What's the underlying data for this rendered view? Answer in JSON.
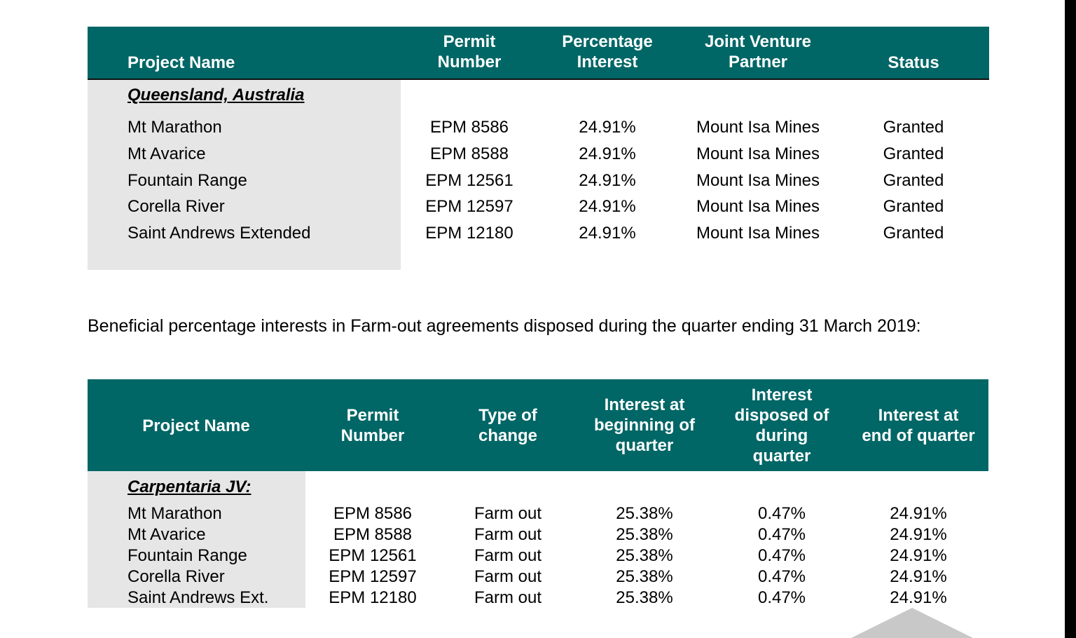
{
  "table1": {
    "headers": [
      "Project Name",
      "Permit\nNumber",
      "Percentage\nInterest",
      "Joint Venture\nPartner",
      "Status"
    ],
    "section": "Queensland, Australia",
    "rows": [
      [
        "Mt Marathon",
        "EPM 8586",
        "24.91%",
        "Mount Isa Mines",
        "Granted"
      ],
      [
        "Mt Avarice",
        "EPM 8588",
        "24.91%",
        "Mount Isa Mines",
        "Granted"
      ],
      [
        "Fountain Range",
        "EPM 12561",
        "24.91%",
        "Mount Isa Mines",
        "Granted"
      ],
      [
        "Corella River",
        "EPM 12597",
        "24.91%",
        "Mount Isa Mines",
        "Granted"
      ],
      [
        "Saint Andrews Extended",
        "EPM 12180",
        "24.91%",
        "Mount Isa Mines",
        "Granted"
      ]
    ]
  },
  "paragraph": "Beneficial percentage interests in Farm-out agreements disposed during the quarter ending 31 March 2019:",
  "table2": {
    "headers": [
      "Project Name",
      "Permit\nNumber",
      "Type of\nchange",
      "Interest at\nbeginning of\nquarter",
      "Interest\ndisposed of\nduring\nquarter",
      "Interest at\nend of quarter"
    ],
    "section": "Carpentaria JV:",
    "rows": [
      [
        "Mt Marathon",
        "EPM 8586",
        "Farm out",
        "25.38%",
        "0.47%",
        "24.91%"
      ],
      [
        "Mt Avarice",
        "EPM 8588",
        "Farm out",
        "25.38%",
        "0.47%",
        "24.91%"
      ],
      [
        "Fountain Range",
        "EPM 12561",
        "Farm out",
        "25.38%",
        "0.47%",
        "24.91%"
      ],
      [
        "Corella River",
        "EPM 12597",
        "Farm out",
        "25.38%",
        "0.47%",
        "24.91%"
      ],
      [
        "Saint Andrews Ext.",
        "EPM 12180",
        "Farm out",
        "25.38%",
        "0.47%",
        "24.91%"
      ]
    ]
  },
  "colors": {
    "header_bg": "#006666",
    "shade": "#e6e6e6"
  }
}
